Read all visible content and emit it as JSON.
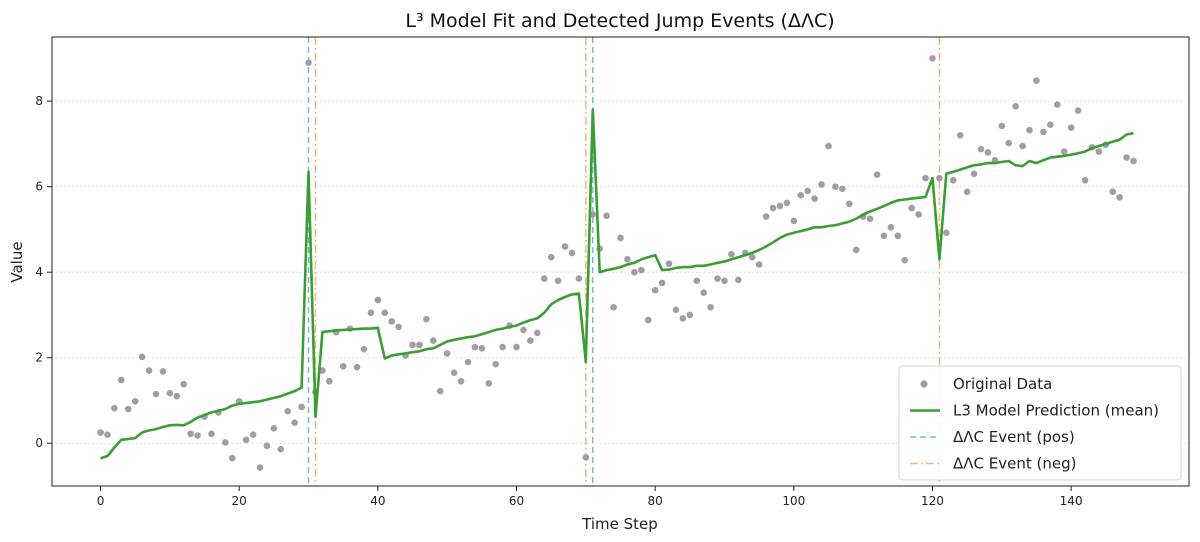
{
  "chart_data": {
    "type": "line",
    "title": "L³ Model Fit and Detected Jump Events (ΔΛC)",
    "xlabel": "Time Step",
    "ylabel": "Value",
    "xlim": [
      -7,
      157
    ],
    "ylim": [
      -1,
      9.5
    ],
    "xticks": [
      0,
      20,
      40,
      60,
      80,
      100,
      120,
      140
    ],
    "yticks": [
      0,
      2,
      4,
      6,
      8
    ],
    "grid": "horizontal dotted",
    "legend_position": "lower-right",
    "colors": {
      "data": "#a39ca6",
      "prediction": "#3a9e33",
      "pos_event": "#7fb5d9",
      "neg_event": "#f5b87a",
      "grid": "#c8dcc4",
      "axis": "#222222"
    },
    "legend": [
      {
        "label": "Original Data",
        "kind": "marker",
        "color": "#a39ca6"
      },
      {
        "label": "L3 Model Prediction (mean)",
        "kind": "line",
        "color": "#3a9e33"
      },
      {
        "label": "ΔΛC Event (pos)",
        "kind": "dashed",
        "color": "#7fb5d9"
      },
      {
        "label": "ΔΛC Event (neg)",
        "kind": "dashdot",
        "color": "#f5b87a"
      }
    ],
    "series": [
      {
        "name": "Original Data",
        "type": "scatter",
        "x": [
          0,
          1,
          2,
          3,
          4,
          5,
          6,
          7,
          8,
          9,
          10,
          11,
          12,
          13,
          14,
          15,
          16,
          17,
          18,
          19,
          20,
          21,
          22,
          23,
          24,
          25,
          26,
          27,
          28,
          29,
          30,
          31,
          32,
          33,
          34,
          35,
          36,
          37,
          38,
          39,
          40,
          41,
          42,
          43,
          44,
          45,
          46,
          47,
          48,
          49,
          50,
          51,
          52,
          53,
          54,
          55,
          56,
          57,
          58,
          59,
          60,
          61,
          62,
          63,
          64,
          65,
          66,
          67,
          68,
          69,
          70,
          71,
          72,
          73,
          74,
          75,
          76,
          77,
          78,
          79,
          80,
          81,
          82,
          83,
          84,
          85,
          86,
          87,
          88,
          89,
          90,
          91,
          92,
          93,
          94,
          95,
          96,
          97,
          98,
          99,
          100,
          101,
          102,
          103,
          104,
          105,
          106,
          107,
          108,
          109,
          110,
          111,
          112,
          113,
          114,
          115,
          116,
          117,
          118,
          119,
          120,
          121,
          122,
          123,
          124,
          125,
          126,
          127,
          128,
          129,
          130,
          131,
          132,
          133,
          134,
          135,
          136,
          137,
          138,
          139,
          140,
          141,
          142,
          143,
          144,
          145,
          146,
          147,
          148,
          149
        ],
        "y": [
          0.25,
          0.2,
          0.82,
          1.48,
          0.8,
          0.98,
          2.02,
          1.7,
          1.15,
          1.68,
          1.17,
          1.1,
          1.38,
          0.22,
          0.18,
          0.62,
          0.22,
          0.72,
          0.02,
          -0.35,
          0.98,
          0.08,
          0.2,
          -0.57,
          -0.06,
          0.35,
          -0.14,
          0.75,
          0.48,
          0.85,
          8.9,
          1.2,
          1.7,
          1.45,
          2.6,
          1.8,
          2.68,
          1.78,
          2.2,
          3.05,
          3.35,
          3.05,
          2.85,
          2.72,
          2.05,
          2.3,
          2.3,
          2.9,
          2.4,
          1.22,
          2.1,
          1.65,
          1.45,
          1.9,
          2.25,
          2.22,
          1.4,
          1.85,
          2.25,
          2.75,
          2.25,
          2.65,
          2.4,
          2.58,
          3.85,
          4.35,
          3.8,
          4.6,
          4.45,
          3.85,
          -0.33,
          5.35,
          4.55,
          5.32,
          3.18,
          4.8,
          4.3,
          4.0,
          4.05,
          2.88,
          3.58,
          3.75,
          4.2,
          3.12,
          2.92,
          3.0,
          3.8,
          3.52,
          3.18,
          3.85,
          3.8,
          4.42,
          3.82,
          4.45,
          4.35,
          4.18,
          5.3,
          5.5,
          5.55,
          5.62,
          5.2,
          5.8,
          5.9,
          5.72,
          6.05,
          6.95,
          6.0,
          5.95,
          5.6,
          4.52,
          5.3,
          5.25,
          6.28,
          4.85,
          5.05,
          4.85,
          4.28,
          5.5,
          5.35,
          6.2,
          9.0,
          6.2,
          4.92,
          6.15,
          7.2,
          5.88,
          6.3,
          6.88,
          6.8,
          6.62,
          7.42,
          7.02,
          7.88,
          6.95,
          7.32,
          8.48,
          7.28,
          7.45,
          7.92,
          6.82,
          7.38,
          7.78,
          6.15,
          6.92,
          6.82,
          6.98,
          5.88,
          5.75,
          6.68,
          6.6
        ]
      },
      {
        "name": "L3 Model Prediction (mean)",
        "type": "line",
        "x": [
          0,
          1,
          2,
          3,
          4,
          5,
          6,
          7,
          8,
          9,
          10,
          11,
          12,
          13,
          14,
          15,
          16,
          17,
          18,
          19,
          20,
          21,
          22,
          23,
          24,
          25,
          26,
          27,
          28,
          29,
          30,
          31,
          32,
          33,
          34,
          35,
          36,
          37,
          38,
          39,
          40,
          41,
          42,
          43,
          44,
          45,
          46,
          47,
          48,
          49,
          50,
          51,
          52,
          53,
          54,
          55,
          56,
          57,
          58,
          59,
          60,
          61,
          62,
          63,
          64,
          65,
          66,
          67,
          68,
          69,
          70,
          71,
          72,
          73,
          74,
          75,
          76,
          77,
          78,
          79,
          80,
          81,
          82,
          83,
          84,
          85,
          86,
          87,
          88,
          89,
          90,
          91,
          92,
          93,
          94,
          95,
          96,
          97,
          98,
          99,
          100,
          101,
          102,
          103,
          104,
          105,
          106,
          107,
          108,
          109,
          110,
          111,
          112,
          113,
          114,
          115,
          116,
          117,
          118,
          119,
          120,
          121,
          122,
          123,
          124,
          125,
          126,
          127,
          128,
          129,
          130,
          131,
          132,
          133,
          134,
          135,
          136,
          137,
          138,
          139,
          140,
          141,
          142,
          143,
          144,
          145,
          146,
          147,
          148,
          149
        ],
        "y": [
          -0.35,
          -0.3,
          -0.1,
          0.08,
          0.1,
          0.12,
          0.25,
          0.3,
          0.33,
          0.38,
          0.42,
          0.43,
          0.42,
          0.5,
          0.6,
          0.66,
          0.72,
          0.76,
          0.8,
          0.88,
          0.92,
          0.94,
          0.96,
          0.98,
          1.02,
          1.06,
          1.1,
          1.16,
          1.22,
          1.3,
          6.35,
          0.62,
          2.6,
          2.62,
          2.64,
          2.65,
          2.66,
          2.67,
          2.68,
          2.68,
          2.7,
          1.98,
          2.05,
          2.08,
          2.1,
          2.13,
          2.15,
          2.2,
          2.22,
          2.3,
          2.38,
          2.42,
          2.45,
          2.48,
          2.5,
          2.55,
          2.6,
          2.65,
          2.68,
          2.72,
          2.75,
          2.82,
          2.88,
          2.92,
          3.05,
          3.25,
          3.35,
          3.42,
          3.48,
          3.5,
          1.9,
          7.8,
          4.0,
          4.05,
          4.08,
          4.12,
          4.18,
          4.22,
          4.3,
          4.35,
          4.4,
          4.05,
          4.06,
          4.1,
          4.12,
          4.12,
          4.15,
          4.15,
          4.18,
          4.22,
          4.25,
          4.3,
          4.35,
          4.4,
          4.45,
          4.52,
          4.6,
          4.7,
          4.8,
          4.88,
          4.92,
          4.96,
          5.0,
          5.05,
          5.05,
          5.08,
          5.1,
          5.14,
          5.18,
          5.25,
          5.35,
          5.42,
          5.48,
          5.55,
          5.62,
          5.68,
          5.7,
          5.72,
          5.74,
          5.76,
          6.2,
          4.3,
          6.3,
          6.35,
          6.4,
          6.45,
          6.5,
          6.52,
          6.55,
          6.55,
          6.58,
          6.6,
          6.5,
          6.48,
          6.6,
          6.55,
          6.62,
          6.68,
          6.7,
          6.72,
          6.75,
          6.78,
          6.82,
          6.9,
          6.95,
          7.0,
          7.05,
          7.1,
          7.22,
          7.25
        ]
      }
    ],
    "events_pos": [
      30,
      71
    ],
    "events_neg": [
      31,
      70,
      121
    ]
  }
}
